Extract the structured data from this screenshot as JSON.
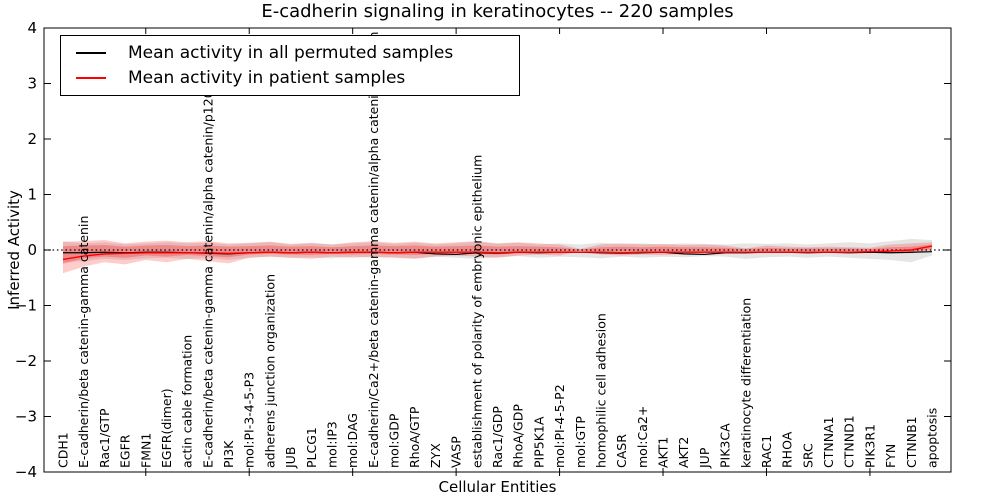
{
  "figure": {
    "title": "E-cadherin signaling in keratinocytes -- 220 samples",
    "xlabel": "Cellular Entities",
    "ylabel": "Inferred Activity",
    "background": "#ffffff"
  },
  "legend": {
    "position": "upper left",
    "entries": [
      {
        "label": "Mean activity in all permuted samples",
        "color": "#000000"
      },
      {
        "label": "Mean activity in patient samples",
        "color": "#ff0000"
      }
    ]
  },
  "chart_data": {
    "type": "line",
    "title": "E-cadherin signaling in keratinocytes -- 220 samples",
    "xlabel": "Cellular Entities",
    "ylabel": "Inferred Activity",
    "ylim": [
      -4,
      4
    ],
    "yticks": [
      4,
      3,
      2,
      1,
      0,
      -1,
      -2,
      -3,
      -4
    ],
    "ytick_labels": [
      "4",
      "3",
      "2",
      "1",
      "0",
      "−1",
      "−2",
      "−3",
      "−4"
    ],
    "xtick_every": 5,
    "grid": false,
    "legend_position": "upper left",
    "categories": [
      "CDH1",
      "E-cadherin/beta catenin-gamma catenin",
      "Rac1/GTP",
      "EGFR",
      "FMN1",
      "EGFR(dimer)",
      "actin cable formation",
      "E-cadherin/beta catenin-gamma catenin/alpha catenin/p120 catenin",
      "PI3K",
      "mol:PI-3-4-5-P3",
      "adherens junction organization",
      "JUB",
      "PLCG1",
      "mol:IP3",
      "mol:DAG",
      "E-cadherin/Ca2+/beta catenin-gamma catenin/alpha catenin/p120ctn",
      "mol:GDP",
      "RhoA/GTP",
      "ZYX",
      "VASP",
      "establishment of polarity of embryonic epithelium",
      "Rac1/GDP",
      "RhoA/GDP",
      "PIP5K1A",
      "mol:PI-4-5-P2",
      "mol:GTP",
      "homophilic cell adhesion",
      "CASR",
      "mol:Ca2+",
      "AKT1",
      "AKT2",
      "JUP",
      "PIK3CA",
      "keratinocyte differentiation",
      "RAC1",
      "RHOA",
      "SRC",
      "CTNNA1",
      "CTNND1",
      "PIK3R1",
      "FYN",
      "CTNNB1",
      "apoptosis"
    ],
    "series": [
      {
        "name": "Mean activity in all permuted samples",
        "color": "#000000",
        "values": [
          -0.05,
          -0.05,
          -0.04,
          -0.05,
          -0.04,
          -0.04,
          -0.05,
          -0.06,
          -0.07,
          -0.05,
          -0.04,
          -0.05,
          -0.04,
          -0.05,
          -0.04,
          -0.04,
          -0.05,
          -0.04,
          -0.07,
          -0.08,
          -0.05,
          -0.06,
          -0.04,
          -0.05,
          -0.04,
          -0.04,
          -0.05,
          -0.06,
          -0.05,
          -0.04,
          -0.07,
          -0.08,
          -0.05,
          -0.05,
          -0.04,
          -0.04,
          -0.05,
          -0.04,
          -0.05,
          -0.04,
          -0.05,
          -0.04,
          -0.03
        ]
      },
      {
        "name": "Mean activity in patient samples",
        "color": "#ff0000",
        "values": [
          -0.17,
          -0.11,
          -0.07,
          -0.06,
          -0.05,
          -0.05,
          -0.05,
          -0.05,
          -0.06,
          -0.05,
          -0.04,
          -0.05,
          -0.04,
          -0.05,
          -0.04,
          -0.04,
          -0.05,
          -0.04,
          -0.04,
          -0.04,
          -0.04,
          -0.05,
          -0.04,
          -0.04,
          -0.04,
          -0.04,
          -0.04,
          -0.05,
          -0.04,
          -0.04,
          -0.04,
          -0.04,
          -0.04,
          -0.04,
          -0.04,
          -0.04,
          -0.04,
          -0.04,
          -0.04,
          -0.03,
          -0.02,
          0.0,
          0.07
        ]
      }
    ],
    "bands": [
      {
        "name": "permuted-range",
        "color": "#888888",
        "opacity": 0.22,
        "hi": [
          0.15,
          0.12,
          0.14,
          0.1,
          0.12,
          0.14,
          0.12,
          0.13,
          0.1,
          0.12,
          0.14,
          0.1,
          0.12,
          0.1,
          0.12,
          0.14,
          0.11,
          0.13,
          0.1,
          0.12,
          0.15,
          0.11,
          0.13,
          0.1,
          0.12,
          0.1,
          0.13,
          0.11,
          0.12,
          0.1,
          0.12,
          0.11,
          0.1,
          0.12,
          0.11,
          0.12,
          0.1,
          0.12,
          0.14,
          0.12,
          0.16,
          0.2,
          0.18
        ],
        "lo": [
          -0.22,
          -0.2,
          -0.16,
          -0.18,
          -0.15,
          -0.14,
          -0.16,
          -0.14,
          -0.18,
          -0.14,
          -0.12,
          -0.14,
          -0.13,
          -0.15,
          -0.12,
          -0.14,
          -0.13,
          -0.15,
          -0.12,
          -0.14,
          -0.16,
          -0.13,
          -0.11,
          -0.14,
          -0.12,
          -0.13,
          -0.15,
          -0.12,
          -0.14,
          -0.12,
          -0.13,
          -0.11,
          -0.12,
          -0.16,
          -0.13,
          -0.12,
          -0.14,
          -0.12,
          -0.14,
          -0.16,
          -0.18,
          -0.22,
          -0.1
        ]
      },
      {
        "name": "patient-range-outer",
        "color": "#ff0000",
        "opacity": 0.2,
        "hi": [
          0.15,
          0.16,
          0.18,
          0.12,
          0.15,
          0.17,
          0.14,
          0.16,
          0.12,
          0.13,
          0.15,
          0.11,
          0.13,
          0.1,
          0.14,
          0.16,
          0.13,
          0.15,
          0.12,
          0.14,
          0.16,
          0.12,
          0.14,
          0.12,
          0.1,
          0.02,
          0.1,
          0.12,
          0.1,
          0.11,
          0.09,
          0.1,
          0.08,
          0.03,
          0.08,
          0.06,
          0.05,
          0.06,
          0.05,
          0.04,
          0.1,
          0.12,
          0.14
        ],
        "lo": [
          -0.42,
          -0.3,
          -0.22,
          -0.26,
          -0.18,
          -0.22,
          -0.16,
          -0.2,
          -0.24,
          -0.14,
          -0.12,
          -0.14,
          -0.16,
          -0.12,
          -0.14,
          -0.12,
          -0.14,
          -0.16,
          -0.12,
          -0.1,
          -0.12,
          -0.14,
          -0.1,
          -0.08,
          -0.1,
          -0.02,
          -0.08,
          -0.1,
          -0.08,
          -0.09,
          -0.07,
          -0.06,
          -0.06,
          -0.03,
          -0.05,
          -0.05,
          -0.04,
          -0.05,
          -0.04,
          -0.04,
          -0.06,
          -0.06,
          0.0
        ]
      },
      {
        "name": "patient-range-inner",
        "color": "#ff0000",
        "opacity": 0.25,
        "hi": [
          0.07,
          0.08,
          0.09,
          0.06,
          0.08,
          0.09,
          0.07,
          0.08,
          0.06,
          0.07,
          0.08,
          0.06,
          0.07,
          0.05,
          0.07,
          0.08,
          0.07,
          0.08,
          0.06,
          0.07,
          0.08,
          0.06,
          0.07,
          0.06,
          0.05,
          0.01,
          0.05,
          0.06,
          0.05,
          0.06,
          0.05,
          0.05,
          0.04,
          0.02,
          0.04,
          0.03,
          0.03,
          0.03,
          0.03,
          0.02,
          0.05,
          0.06,
          0.1
        ],
        "lo": [
          -0.25,
          -0.15,
          -0.12,
          -0.14,
          -0.1,
          -0.12,
          -0.09,
          -0.11,
          -0.13,
          -0.08,
          -0.07,
          -0.08,
          -0.09,
          -0.07,
          -0.08,
          -0.07,
          -0.08,
          -0.09,
          -0.07,
          -0.06,
          -0.07,
          -0.08,
          -0.06,
          -0.05,
          -0.06,
          -0.01,
          -0.05,
          -0.06,
          -0.05,
          -0.05,
          -0.04,
          -0.04,
          -0.03,
          -0.02,
          -0.03,
          -0.03,
          -0.02,
          -0.03,
          -0.02,
          -0.02,
          -0.03,
          -0.03,
          0.02
        ]
      }
    ],
    "zero_line": {
      "style": "dotted",
      "color": "#000000",
      "y": 0
    }
  }
}
